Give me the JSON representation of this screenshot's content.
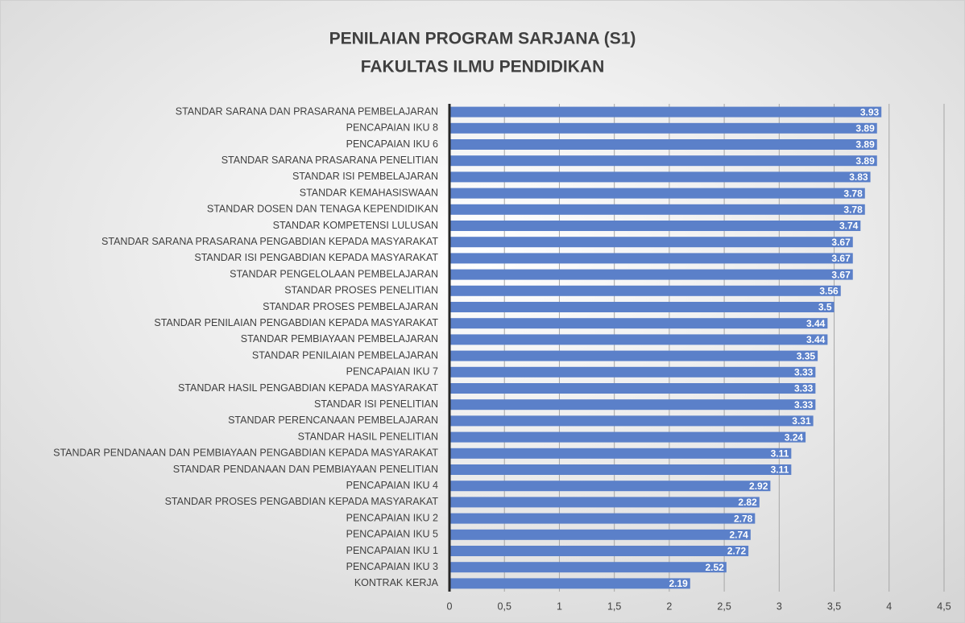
{
  "chart_data": {
    "type": "barh",
    "title": "PENILAIAN PROGRAM SARJANA (S1)",
    "subtitle": "FAKULTAS ILMU PENDIDIKAN",
    "categories": [
      "STANDAR SARANA DAN PRASARANA PEMBELAJARAN",
      "PENCAPAIAN IKU 8",
      "PENCAPAIAN IKU 6",
      "STANDAR SARANA PRASARANA PENELITIAN",
      "STANDAR ISI PEMBELAJARAN",
      "STANDAR KEMAHASISWAAN",
      "STANDAR DOSEN DAN TENAGA KEPENDIDIKAN",
      "STANDAR KOMPETENSI LULUSAN",
      "STANDAR SARANA PRASARANA PENGABDIAN KEPADA MASYARAKAT",
      "STANDAR ISI PENGABDIAN KEPADA MASYARAKAT",
      "STANDAR PENGELOLAAN PEMBELAJARAN",
      "STANDAR PROSES PENELITIAN",
      "STANDAR PROSES PEMBELAJARAN",
      "STANDAR PENILAIAN PENGABDIAN KEPADA MASYARAKAT",
      "STANDAR PEMBIAYAAN PEMBELAJARAN",
      "STANDAR PENILAIAN PEMBELAJARAN",
      "PENCAPAIAN IKU 7",
      "STANDAR HASIL PENGABDIAN KEPADA MASYARAKAT",
      "STANDAR ISI PENELITIAN",
      "STANDAR PERENCANAAN PEMBELAJARAN",
      "STANDAR HASIL PENELITIAN",
      "STANDAR PENDANAAN DAN PEMBIAYAAN PENGABDIAN KEPADA MASYARAKAT",
      "STANDAR PENDANAAN DAN PEMBIAYAAN PENELITIAN",
      "PENCAPAIAN IKU 4",
      "STANDAR PROSES PENGABDIAN KEPADA MASYARAKAT",
      "PENCAPAIAN IKU 2",
      "PENCAPAIAN IKU 5",
      "PENCAPAIAN IKU 1",
      "PENCAPAIAN IKU 3",
      "KONTRAK KERJA"
    ],
    "values": [
      3.93,
      3.89,
      3.89,
      3.89,
      3.83,
      3.78,
      3.78,
      3.74,
      3.67,
      3.67,
      3.67,
      3.56,
      3.5,
      3.44,
      3.44,
      3.35,
      3.33,
      3.33,
      3.33,
      3.31,
      3.24,
      3.11,
      3.11,
      2.92,
      2.82,
      2.78,
      2.74,
      2.72,
      2.52,
      2.19
    ],
    "color": "#5b80c9",
    "xlim": [
      0,
      4.5
    ],
    "xticks": [
      0,
      {
        "value": 0.5,
        "label": "0,5"
      },
      1,
      {
        "value": 1.5,
        "label": "1,5"
      },
      2,
      {
        "value": 2.5,
        "label": "2,5"
      },
      3,
      {
        "value": 3.5,
        "label": "3,5"
      },
      4,
      {
        "value": 4.5,
        "label": "4,5"
      }
    ],
    "grid": true
  }
}
